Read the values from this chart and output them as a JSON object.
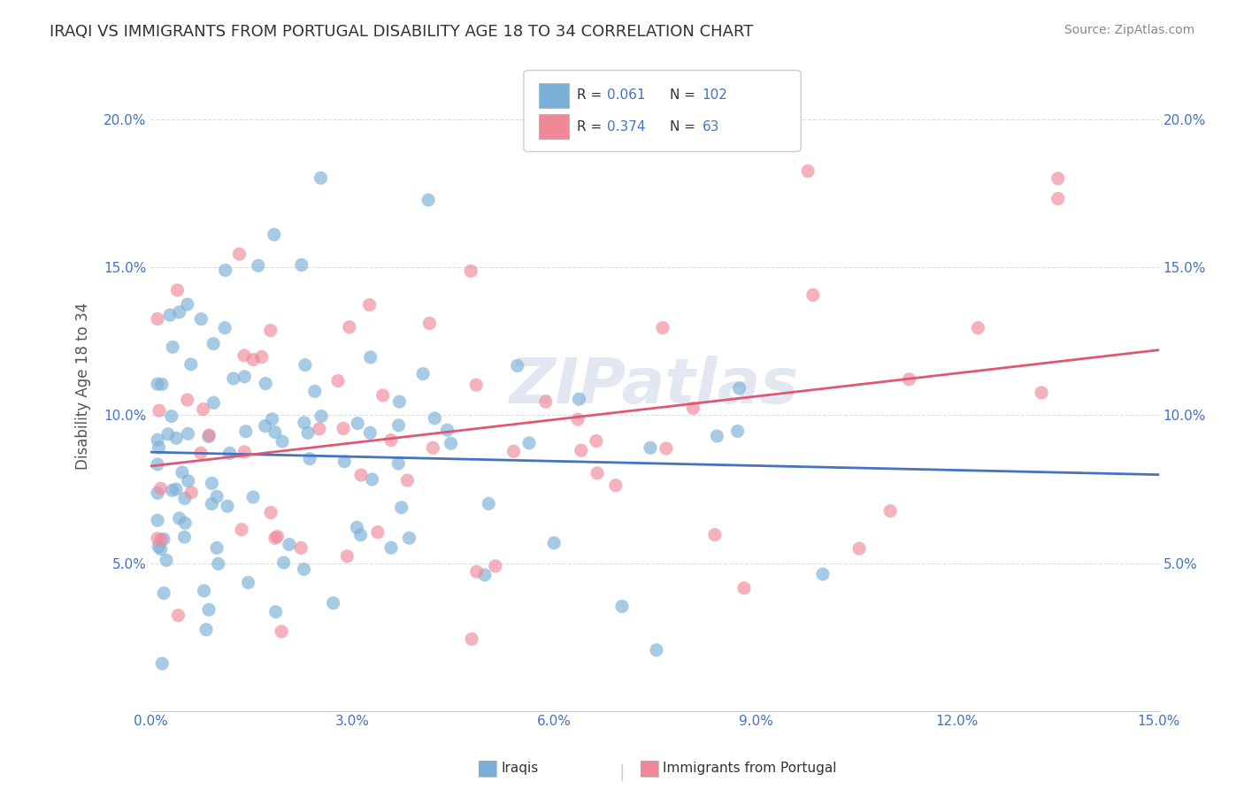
{
  "title": "IRAQI VS IMMIGRANTS FROM PORTUGAL DISABILITY AGE 18 TO 34 CORRELATION CHART",
  "source": "Source: ZipAtlas.com",
  "ylabel": "Disability Age 18 to 34",
  "xlim": [
    0.0,
    0.15
  ],
  "ylim": [
    0.0,
    0.22
  ],
  "iraqis_color": "#7ab0d8",
  "portugal_color": "#f08898",
  "regression_iraqis_color": "#4472c4",
  "regression_portugal_color": "#e05870",
  "iraqis_R": 0.061,
  "iraqis_N": 102,
  "portugal_R": 0.374,
  "portugal_N": 63,
  "watermark": "ZIPatlas",
  "background_color": "#ffffff",
  "grid_color": "#dddddd"
}
